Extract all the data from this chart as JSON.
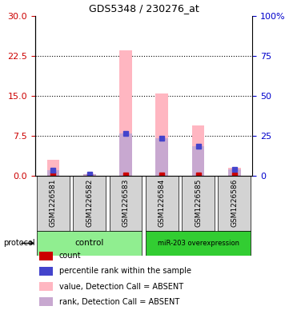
{
  "title": "GDS5348 / 230276_at",
  "samples": [
    "GSM1226581",
    "GSM1226582",
    "GSM1226583",
    "GSM1226584",
    "GSM1226585",
    "GSM1226586"
  ],
  "groups": [
    "control",
    "control",
    "control",
    "miR-203 overexpression",
    "miR-203 overexpression",
    "miR-203 overexpression"
  ],
  "group_labels": [
    "control",
    "miR-203 overexpression"
  ],
  "group_colors": [
    "#90EE90",
    "#32CD32"
  ],
  "values_absent": [
    3.0,
    0.0,
    23.5,
    15.5,
    9.5,
    1.5
  ],
  "ranks_absent": [
    1.0,
    0.3,
    8.0,
    7.0,
    5.5,
    1.2
  ],
  "counts": [
    0.3,
    0.0,
    0.2,
    0.2,
    0.2,
    0.2
  ],
  "percentile_ranks": [
    1.0,
    0.3,
    8.0,
    7.0,
    5.5,
    1.2
  ],
  "ylim_left": [
    0,
    30
  ],
  "ylim_right": [
    0,
    100
  ],
  "yticks_left": [
    0,
    7.5,
    15,
    22.5,
    30
  ],
  "yticks_right": [
    0,
    25,
    50,
    75,
    100
  ],
  "bar_color_absent_value": "#FFB6C1",
  "bar_color_absent_rank": "#C8A8D0",
  "count_color": "#CC0000",
  "percentile_color": "#4444CC",
  "legend_items": [
    {
      "color": "#CC0000",
      "label": "count"
    },
    {
      "color": "#4444CC",
      "label": "percentile rank within the sample"
    },
    {
      "color": "#FFB6C1",
      "label": "value, Detection Call = ABSENT"
    },
    {
      "color": "#C8A8D0",
      "label": "rank, Detection Call = ABSENT"
    }
  ],
  "protocol_label": "protocol",
  "ylabel_left_color": "#CC0000",
  "ylabel_right_color": "#0000CC"
}
